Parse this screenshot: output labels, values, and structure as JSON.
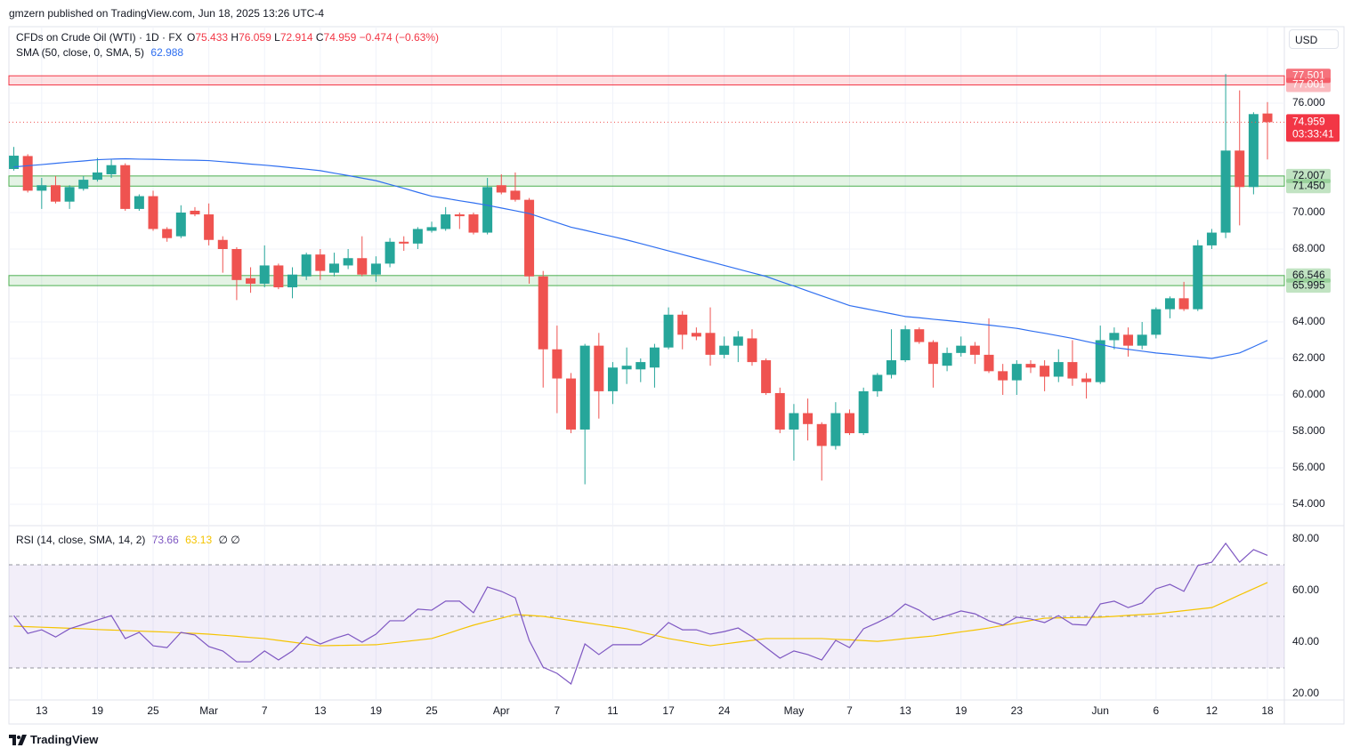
{
  "published": "gmzern published on TradingView.com, Jun 18, 2025 13:26 UTC-4",
  "footer": "TradingView",
  "chart_data": {
    "type": "candlestick",
    "title": "CFDs on Crude Oil (WTI) · 1D · FX",
    "ohlc_prefixes": [
      "O",
      "H",
      "L",
      "C"
    ],
    "change": "−0.474 (−0.63%)",
    "currency": "USD",
    "countdown": "03:33:41",
    "up_color": "#26a69a",
    "down_color": "#ef5350",
    "categories": [
      null,
      null,
      "13",
      null,
      null,
      null,
      "19",
      null,
      null,
      null,
      "25",
      null,
      null,
      null,
      "Mar",
      null,
      null,
      null,
      "7",
      null,
      null,
      null,
      "13",
      null,
      null,
      null,
      "19",
      null,
      null,
      null,
      "25",
      null,
      null,
      null,
      null,
      "Apr",
      null,
      null,
      null,
      "7",
      null,
      null,
      null,
      "11",
      null,
      null,
      null,
      "17",
      null,
      null,
      null,
      "24",
      null,
      null,
      null,
      null,
      "May",
      null,
      null,
      null,
      "7",
      null,
      null,
      null,
      "13",
      null,
      null,
      null,
      "19",
      null,
      null,
      null,
      "23",
      null,
      null,
      null,
      null,
      null,
      "Jun",
      null,
      null,
      null,
      "6",
      null,
      null,
      null,
      "12",
      null,
      null,
      null,
      "18"
    ],
    "open": [
      72.39,
      73.1,
      71.2,
      71.5,
      70.6,
      71.3,
      71.8,
      72.1,
      72.6,
      70.2,
      70.9,
      69.1,
      68.7,
      70.1,
      69.9,
      68.5,
      68.0,
      66.4,
      66.1,
      67.1,
      65.9,
      66.5,
      67.7,
      66.7,
      67.1,
      67.5,
      66.6,
      67.2,
      68.4,
      68.3,
      69.0,
      69.1,
      69.9,
      69.9,
      68.9,
      71.5,
      71.2,
      70.7,
      66.5,
      62.5,
      60.9,
      58.1,
      62.7,
      60.2,
      61.4,
      61.4,
      61.5,
      62.6,
      64.4,
      63.4,
      63.4,
      62.2,
      62.7,
      63.1,
      61.9,
      60.1,
      58.1,
      59.0,
      58.4,
      57.2,
      59.0,
      57.9,
      60.2,
      61.1,
      61.9,
      63.6,
      62.9,
      61.6,
      62.3,
      62.7,
      62.2,
      61.3,
      60.8,
      61.7,
      61.6,
      61.0,
      61.8,
      60.9,
      60.7,
      63.0,
      63.3,
      62.7,
      63.3,
      64.7,
      65.3,
      64.7,
      68.2,
      68.9,
      73.4,
      71.4,
      75.433
    ],
    "high": [
      73.6,
      73.2,
      71.9,
      72.0,
      71.5,
      72.0,
      73.0,
      72.9,
      72.7,
      71.0,
      71.2,
      69.2,
      70.4,
      70.3,
      70.5,
      68.7,
      68.1,
      67.0,
      68.2,
      67.2,
      67.0,
      67.8,
      68.0,
      67.8,
      68.0,
      68.7,
      67.6,
      68.6,
      68.7,
      69.2,
      69.5,
      70.3,
      70.0,
      70.0,
      71.9,
      72.1,
      72.2,
      70.8,
      66.8,
      63.8,
      61.2,
      62.8,
      63.4,
      61.8,
      62.6,
      62.0,
      62.8,
      64.8,
      64.6,
      63.7,
      64.8,
      63.2,
      63.5,
      63.6,
      62.0,
      60.4,
      59.5,
      59.8,
      58.5,
      59.6,
      59.2,
      60.4,
      61.2,
      63.6,
      63.8,
      63.7,
      63.0,
      62.6,
      63.2,
      62.9,
      64.2,
      61.7,
      61.9,
      61.9,
      61.9,
      62.5,
      63.0,
      61.2,
      63.8,
      63.7,
      63.7,
      64.0,
      64.8,
      65.4,
      66.2,
      68.5,
      69.1,
      77.6,
      76.7,
      75.5,
      76.059
    ],
    "low": [
      72.3,
      71.1,
      70.2,
      70.5,
      70.2,
      71.2,
      71.7,
      71.9,
      70.1,
      70.1,
      69.0,
      68.4,
      68.6,
      69.8,
      68.2,
      66.7,
      65.2,
      65.6,
      65.9,
      65.8,
      65.3,
      66.3,
      66.3,
      66.5,
      66.9,
      66.5,
      66.2,
      67.0,
      67.9,
      68.0,
      68.9,
      69.0,
      69.1,
      68.8,
      68.8,
      71.0,
      70.6,
      66.1,
      60.4,
      59.0,
      57.9,
      55.1,
      58.7,
      59.5,
      60.6,
      60.7,
      60.4,
      62.5,
      62.5,
      63.0,
      61.6,
      62.0,
      61.8,
      61.6,
      60.0,
      57.9,
      56.4,
      57.5,
      55.3,
      57.0,
      57.8,
      57.8,
      59.9,
      60.9,
      61.8,
      62.8,
      60.4,
      61.3,
      62.1,
      61.7,
      61.2,
      60.0,
      60.0,
      61.2,
      60.2,
      60.7,
      60.5,
      59.8,
      60.6,
      62.5,
      62.1,
      62.5,
      63.1,
      64.2,
      64.6,
      64.6,
      68.0,
      68.6,
      69.3,
      71.0,
      72.914
    ],
    "close": [
      73.12,
      71.2,
      71.5,
      70.6,
      71.4,
      71.8,
      72.2,
      72.6,
      70.2,
      70.9,
      69.1,
      68.6,
      70.0,
      69.9,
      68.5,
      68.0,
      66.3,
      66.1,
      67.1,
      65.9,
      66.6,
      67.7,
      66.8,
      67.2,
      67.5,
      66.6,
      67.2,
      68.4,
      68.3,
      69.1,
      69.2,
      69.9,
      69.8,
      68.9,
      71.4,
      71.1,
      70.7,
      66.5,
      62.5,
      60.9,
      58.1,
      62.7,
      60.2,
      61.5,
      61.6,
      61.8,
      62.6,
      64.4,
      63.3,
      63.2,
      62.2,
      62.7,
      63.2,
      61.8,
      60.1,
      58.1,
      59.0,
      58.4,
      57.2,
      59.0,
      57.9,
      60.2,
      61.1,
      61.9,
      63.6,
      62.9,
      61.7,
      62.3,
      62.7,
      62.2,
      61.3,
      60.8,
      61.7,
      61.5,
      61.0,
      61.8,
      60.9,
      60.7,
      63.0,
      63.4,
      62.7,
      63.3,
      64.7,
      65.3,
      64.7,
      68.2,
      68.9,
      73.4,
      71.4,
      75.4,
      74.959
    ],
    "sma": {
      "name": "SMA (50, close, 0, SMA, 5)",
      "color": "#2f6ff0",
      "values": [
        72.5,
        72.57,
        72.63,
        72.7,
        72.77,
        72.83,
        72.9,
        72.93,
        72.95,
        72.93,
        72.92,
        72.9,
        72.88,
        72.87,
        72.85,
        72.79,
        72.73,
        72.66,
        72.6,
        72.53,
        72.45,
        72.38,
        72.3,
        72.16,
        72.03,
        71.89,
        71.75,
        71.54,
        71.33,
        71.11,
        70.9,
        70.78,
        70.65,
        70.53,
        70.4,
        70.25,
        70.1,
        69.95,
        69.7,
        69.45,
        69.2,
        69.03,
        68.85,
        68.68,
        68.5,
        68.3,
        68.1,
        67.9,
        67.7,
        67.5,
        67.3,
        67.1,
        66.9,
        66.7,
        66.5,
        66.23,
        65.97,
        65.7,
        65.43,
        65.17,
        64.9,
        64.75,
        64.6,
        64.45,
        64.3,
        64.23,
        64.15,
        64.08,
        64.0,
        63.91,
        63.83,
        63.74,
        63.65,
        63.51,
        63.38,
        63.24,
        63.1,
        62.93,
        62.77,
        62.6,
        62.5,
        62.4,
        62.3,
        62.23,
        62.15,
        62.08,
        62.0,
        62.15,
        62.3,
        62.64,
        62.988
      ]
    },
    "ylim": [
      52.878,
      80.195
    ],
    "yticks": [
      {
        "value": 54,
        "label": "54.000"
      },
      {
        "value": 56,
        "label": "56.000"
      },
      {
        "value": 58,
        "label": "58.000"
      },
      {
        "value": 60,
        "label": "60.000"
      },
      {
        "value": 62,
        "label": "62.000"
      },
      {
        "value": 64,
        "label": "64.000"
      },
      {
        "value": 68,
        "label": "68.000"
      },
      {
        "value": 70,
        "label": "70.000"
      },
      {
        "value": 76,
        "label": "76.000"
      }
    ],
    "grid": true,
    "zones": [
      {
        "low": {
          "value": 77.001,
          "label": "77.001"
        },
        "high": {
          "value": 77.501,
          "label": "77.501"
        },
        "color": "#f23645"
      },
      {
        "low": {
          "value": 71.45,
          "label": "71.450"
        },
        "high": {
          "value": 72.007,
          "label": "72.007"
        },
        "color": "#4caf50"
      },
      {
        "low": {
          "value": 65.995,
          "label": "65.995"
        },
        "high": {
          "value": 66.546,
          "label": "66.546"
        },
        "color": "#4caf50"
      }
    ],
    "rsi": {
      "name": "RSI (14, close, SMA, 14, 2)",
      "color": "#7e57c2",
      "extra": "∅ ∅",
      "values": [
        50.3,
        43.4,
        44.8,
        42.0,
        45.2,
        46.9,
        48.6,
        50.3,
        41.4,
        43.8,
        38.6,
        37.9,
        43.8,
        42.8,
        38.3,
        36.6,
        32.4,
        32.4,
        36.6,
        33.1,
        36.6,
        42.1,
        39.3,
        41.4,
        43.1,
        40.0,
        43.1,
        48.3,
        48.3,
        52.8,
        52.4,
        55.9,
        55.9,
        51.4,
        61.4,
        59.7,
        57.2,
        40.7,
        30.3,
        27.9,
        23.8,
        39.3,
        35.2,
        39.0,
        39.0,
        39.0,
        42.4,
        47.6,
        44.8,
        44.8,
        43.1,
        44.1,
        45.5,
        42.1,
        37.9,
        33.8,
        36.6,
        35.2,
        33.1,
        40.7,
        37.9,
        45.2,
        47.6,
        50.3,
        54.8,
        52.4,
        48.6,
        50.3,
        52.1,
        51.0,
        48.3,
        46.6,
        49.7,
        49.0,
        47.6,
        50.3,
        46.9,
        46.6,
        54.8,
        55.9,
        53.4,
        55.2,
        60.7,
        62.4,
        59.7,
        69.7,
        71.0,
        78.3,
        71.0,
        75.9,
        73.66
      ],
      "sma": {
        "color": "#f5c400",
        "values": [
          46.2,
          46.0,
          45.8,
          45.6,
          45.4,
          45.2,
          44.9,
          44.7,
          44.5,
          44.3,
          44.1,
          43.9,
          43.6,
          43.4,
          43.1,
          42.7,
          42.3,
          41.8,
          41.4,
          40.7,
          40.0,
          39.3,
          38.6,
          38.7,
          38.8,
          38.9,
          39.0,
          39.6,
          40.2,
          40.8,
          41.4,
          43.1,
          44.9,
          46.6,
          48.0,
          49.3,
          50.7,
          50.4,
          50.0,
          49.2,
          48.4,
          47.6,
          46.8,
          46.0,
          45.2,
          43.9,
          42.7,
          41.4,
          40.5,
          39.5,
          38.6,
          39.3,
          40.0,
          40.7,
          41.4,
          41.4,
          41.4,
          41.4,
          41.4,
          41.1,
          40.9,
          40.6,
          40.3,
          40.8,
          41.4,
          41.9,
          42.4,
          43.2,
          44.0,
          44.7,
          45.5,
          46.5,
          47.4,
          48.4,
          49.3,
          49.4,
          49.5,
          49.6,
          49.7,
          50.0,
          50.4,
          50.7,
          51.0,
          51.6,
          52.2,
          52.8,
          53.4,
          55.8,
          58.3,
          60.7,
          63.13
        ]
      },
      "ylim": [
        17.59,
        84.83
      ],
      "yticks": [
        {
          "value": 20,
          "label": "20.00"
        },
        {
          "value": 40,
          "label": "40.00"
        },
        {
          "value": 60,
          "label": "60.00"
        },
        {
          "value": 80,
          "label": "80.00"
        }
      ],
      "levels": [
        70,
        50,
        30
      ],
      "band_color": "#7e57c2"
    }
  }
}
